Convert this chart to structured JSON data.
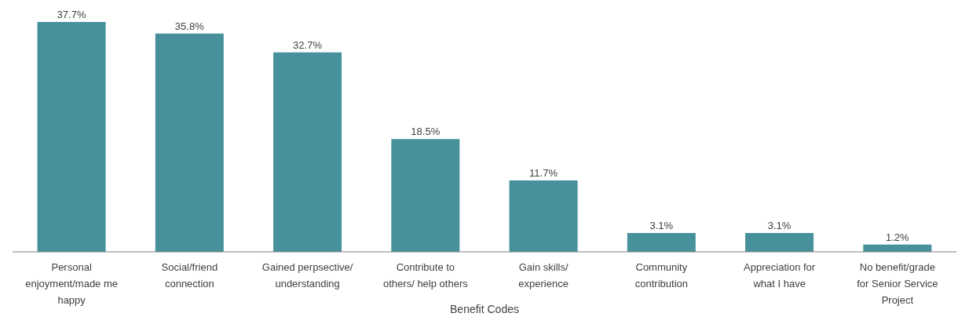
{
  "chart_data": {
    "type": "bar",
    "xlabel": "Benefit Codes",
    "categories": [
      "Personal enjoyment/made me happy",
      "Social/friend connection",
      "Gained perpsective/ understanding",
      "Contribute to others/ help others",
      "Gain skills/ experience",
      "Community contribution",
      "Appreciation for what I have",
      "No benefit/grade for Senior Service Project"
    ],
    "values": [
      37.7,
      35.8,
      32.7,
      18.5,
      11.7,
      3.1,
      3.1,
      1.2
    ],
    "value_labels": [
      "37.7%",
      "35.8%",
      "32.7%",
      "18.5%",
      "11.7%",
      "3.1%",
      "3.1%",
      "1.2%"
    ],
    "color": "#46919c",
    "grid": false,
    "legend": false
  }
}
